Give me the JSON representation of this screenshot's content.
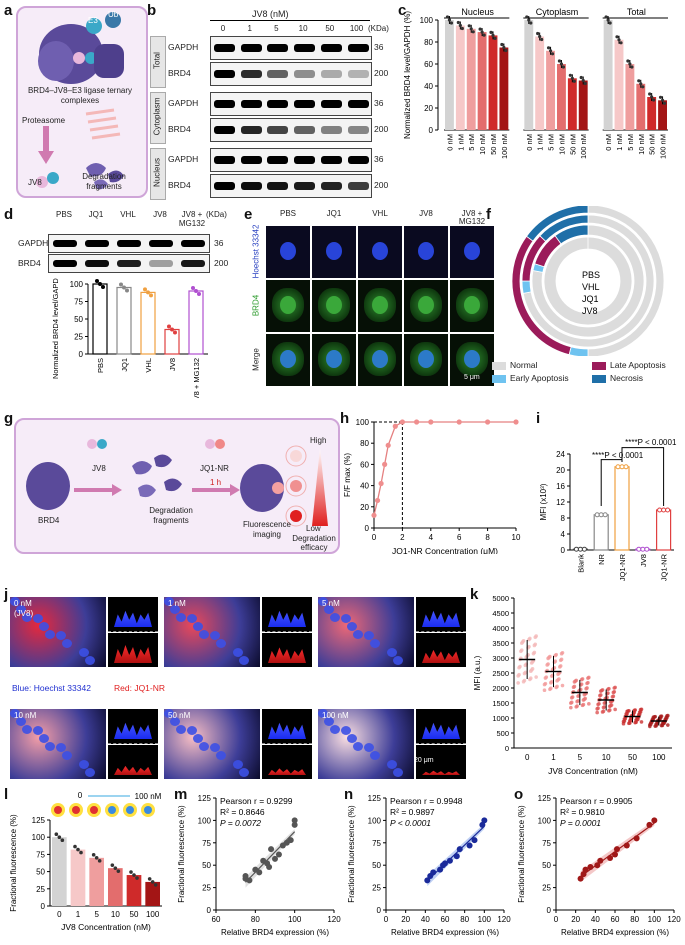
{
  "panels": {
    "a": {
      "label": "a",
      "e3": "E3",
      "ub": "Ub",
      "complex_label": "BRD4–JV8–E3 ligase ternary complexes",
      "proteasome": "Proteasome",
      "jv8": "JV8",
      "fragments": "Degradation fragments"
    },
    "b": {
      "label": "b",
      "title": "JV8 (nM)",
      "conc": [
        "0",
        "1",
        "5",
        "10",
        "50",
        "100"
      ],
      "kda_label": "(KDa)",
      "sections": [
        {
          "name": "Total",
          "rows": [
            {
              "protein": "GAPDH",
              "kda": "36"
            },
            {
              "protein": "BRD4",
              "kda": "200"
            }
          ]
        },
        {
          "name": "Cytoplasm",
          "rows": [
            {
              "protein": "GAPDH",
              "kda": "36"
            },
            {
              "protein": "BRD4",
              "kda": "200"
            }
          ]
        },
        {
          "name": "Nucleus",
          "rows": [
            {
              "protein": "GAPDH",
              "kda": "36"
            },
            {
              "protein": "BRD4",
              "kda": "200"
            }
          ]
        }
      ]
    },
    "c": {
      "label": "c",
      "chart_data": {
        "type": "bar",
        "ylabel": "Normalized BRD4 level/GAPDH (%)",
        "ylim": [
          0,
          100
        ],
        "yticks": [
          0,
          20,
          40,
          60,
          80,
          100
        ],
        "groups": [
          "Nucleus",
          "Cytoplasm",
          "Total"
        ],
        "categories": [
          "0 nM",
          "1 nM",
          "5 nM",
          "10 nM",
          "50 nM",
          "100 nM"
        ],
        "series": [
          {
            "name": "Nucleus",
            "values": [
              100,
              95,
              92,
              89,
              86,
              75
            ]
          },
          {
            "name": "Cytoplasm",
            "values": [
              100,
              85,
              72,
              60,
              47,
              45
            ]
          },
          {
            "name": "Total",
            "values": [
              100,
              82,
              60,
              42,
              30,
              27
            ]
          }
        ],
        "colors": [
          "#d3d3d3",
          "#f6c8c8",
          "#ef9e9e",
          "#e36d6d",
          "#cf2a2a",
          "#a31515"
        ]
      }
    },
    "d": {
      "label": "d",
      "lanes": [
        "PBS",
        "JQ1",
        "VHL",
        "JV8",
        "JV8 + MG132"
      ],
      "kda_label": "(KDa)",
      "rows": [
        {
          "protein": "GAPDH",
          "kda": "36"
        },
        {
          "protein": "BRD4",
          "kda": "200"
        }
      ],
      "chart_data": {
        "type": "bar",
        "ylabel": "Normalized BRD4 level/GAPDH (%)",
        "ylim": [
          0,
          100
        ],
        "yticks": [
          0,
          25,
          50,
          75,
          100
        ],
        "categories": [
          "PBS",
          "JQ1",
          "VHL",
          "JV8",
          "JV8 + MG132"
        ],
        "values": [
          100,
          95,
          88,
          35,
          90
        ],
        "colors": [
          "#000000",
          "#888888",
          "#f0a040",
          "#e04040",
          "#b050d0"
        ]
      }
    },
    "e": {
      "label": "e",
      "columns": [
        "PBS",
        "JQ1",
        "VHL",
        "JV8",
        "JV8 + MG132"
      ],
      "rows": [
        "Hoechst 33342",
        "BRD4",
        "Merge"
      ],
      "scale": "5 μm"
    },
    "f": {
      "label": "f",
      "rings": [
        "PBS",
        "VHL",
        "JQ1",
        "JV8"
      ],
      "legend": [
        {
          "name": "Normal",
          "color": "#dcdcdc"
        },
        {
          "name": "Late Apoptosis",
          "color": "#9b1b5a"
        },
        {
          "name": "Early Apoptosis",
          "color": "#6fc3f0"
        },
        {
          "name": "Necrosis",
          "color": "#1f6fa8"
        }
      ]
    },
    "g": {
      "label": "g",
      "brd4": "BRD4",
      "jv8": "JV8",
      "fragments": "Degradation fragments",
      "probe": "JQ1-NR",
      "time": "1 h",
      "imaging": "Fluorescence imaging",
      "high": "High",
      "low": "Low",
      "efficacy": "Degradation efficacy"
    },
    "h": {
      "label": "h",
      "chart_data": {
        "type": "line",
        "xlabel": "JQ1-NR Concentration (μM)",
        "ylabel": "F/F max (%)",
        "xlim": [
          0,
          10
        ],
        "ylim": [
          0,
          100
        ],
        "xticks": [
          0,
          2,
          4,
          6,
          8,
          10
        ],
        "yticks": [
          0,
          20,
          40,
          60,
          80,
          100
        ],
        "x": [
          0,
          0.25,
          0.5,
          0.75,
          1,
          1.5,
          2,
          3,
          4,
          6,
          8,
          10
        ],
        "y": [
          12,
          26,
          42,
          60,
          78,
          96,
          100,
          100,
          100,
          100,
          100,
          100
        ]
      }
    },
    "i": {
      "label": "i",
      "chart_data": {
        "type": "bar",
        "ylabel": "MFI (x10³)",
        "ylim": [
          0,
          24
        ],
        "yticks": [
          0,
          4,
          8,
          12,
          16,
          20,
          24
        ],
        "categories": [
          "Blank",
          "NR",
          "JQ1-NR",
          "JV8",
          "JV8+ JQ1-NR"
        ],
        "values": [
          0.2,
          8.8,
          20.8,
          0.2,
          10.0
        ],
        "colors": [
          "#444444",
          "#888888",
          "#f0a040",
          "#b050d0",
          "#e04040"
        ],
        "annotations": [
          "****P < 0.0001",
          "****P < 0.0001"
        ]
      }
    },
    "j": {
      "label": "j",
      "tiles": [
        "0 nM",
        "1 nM",
        "5 nM",
        "10 nM",
        "50 nM",
        "100 nM"
      ],
      "first_sub": "(JV8)",
      "legend_blue": "Blue: Hoechst 33342",
      "legend_red": "Red: JQ1-NR",
      "scale": "20 μm"
    },
    "k": {
      "label": "k",
      "chart_data": {
        "type": "scatter",
        "xlabel": "JV8 Concentration (nM)",
        "ylabel": "MFI (a.u.)",
        "ylim": [
          0,
          5000
        ],
        "yticks": [
          0,
          500,
          1000,
          1500,
          2000,
          2500,
          3000,
          3500,
          4000,
          4500,
          5000
        ],
        "categories": [
          "0",
          "1",
          "5",
          "10",
          "50",
          "100"
        ],
        "means": [
          2950,
          2550,
          1850,
          1600,
          1050,
          900
        ],
        "sd": [
          650,
          520,
          420,
          350,
          200,
          150
        ]
      }
    },
    "l": {
      "label": "l",
      "range_label": "100 nM",
      "range_start": "0",
      "chart_data": {
        "type": "bar",
        "xlabel": "JV8 Concentration (nM)",
        "ylabel": "Fractional fluorescence (%)",
        "ylim": [
          0,
          125
        ],
        "yticks": [
          0,
          25,
          50,
          75,
          100,
          125
        ],
        "categories": [
          "0",
          "1",
          "5",
          "10",
          "50",
          "100"
        ],
        "values": [
          100,
          82,
          70,
          55,
          45,
          35
        ],
        "colors": [
          "#d3d3d3",
          "#f6c8c8",
          "#ef9e9e",
          "#e36d6d",
          "#cf2a2a",
          "#a31515"
        ]
      }
    },
    "m": {
      "label": "m",
      "pearson": "Pearson r = 0.9299",
      "r2": "R² = 0.8646",
      "p": "P = 0.0072",
      "chart_data": {
        "type": "scatter",
        "xlabel": "Relative BRD4 expression (%)",
        "ylabel": "Fractional fluorescence (%)",
        "xlim": [
          60,
          120
        ],
        "ylim": [
          0,
          125
        ],
        "xticks": [
          60,
          80,
          100,
          120
        ],
        "yticks": [
          0,
          25,
          50,
          75,
          100,
          125
        ],
        "x": [
          75,
          75,
          77,
          80,
          82,
          84,
          86,
          87,
          88,
          90,
          92,
          94,
          96,
          98,
          100,
          100
        ],
        "y": [
          35,
          38,
          33,
          45,
          42,
          55,
          52,
          48,
          68,
          57,
          62,
          72,
          75,
          78,
          95,
          100
        ]
      }
    },
    "n": {
      "label": "n",
      "pearson": "Pearson r = 0.9948",
      "r2": "R² = 0.9897",
      "p": "P < 0.0001",
      "chart_data": {
        "type": "scatter",
        "xlabel": "Relative BRD4 expression (%)",
        "ylabel": "Fractional fluorescence (%)",
        "xlim": [
          0,
          120
        ],
        "ylim": [
          0,
          125
        ],
        "xticks": [
          0,
          20,
          40,
          60,
          80,
          100,
          120
        ],
        "yticks": [
          0,
          25,
          50,
          75,
          100,
          125
        ],
        "x": [
          42,
          45,
          48,
          55,
          58,
          60,
          65,
          72,
          75,
          85,
          90,
          98,
          100
        ],
        "y": [
          33,
          38,
          42,
          45,
          50,
          52,
          55,
          60,
          68,
          72,
          78,
          95,
          100
        ]
      }
    },
    "o": {
      "label": "o",
      "pearson": "Pearson r = 0.9905",
      "r2": "R² = 0.9810",
      "p": "P = 0.0001",
      "chart_data": {
        "type": "scatter",
        "xlabel": "Relative BRD4 expression (%)",
        "ylabel": "Fractional fluorescence (%)",
        "xlim": [
          0,
          120
        ],
        "ylim": [
          0,
          125
        ],
        "xticks": [
          0,
          20,
          40,
          60,
          80,
          100,
          120
        ],
        "yticks": [
          0,
          25,
          50,
          75,
          100,
          125
        ],
        "x": [
          25,
          28,
          30,
          35,
          42,
          45,
          55,
          60,
          62,
          72,
          82,
          95,
          100
        ],
        "y": [
          35,
          40,
          45,
          48,
          50,
          55,
          58,
          62,
          68,
          72,
          80,
          95,
          100
        ]
      }
    }
  }
}
